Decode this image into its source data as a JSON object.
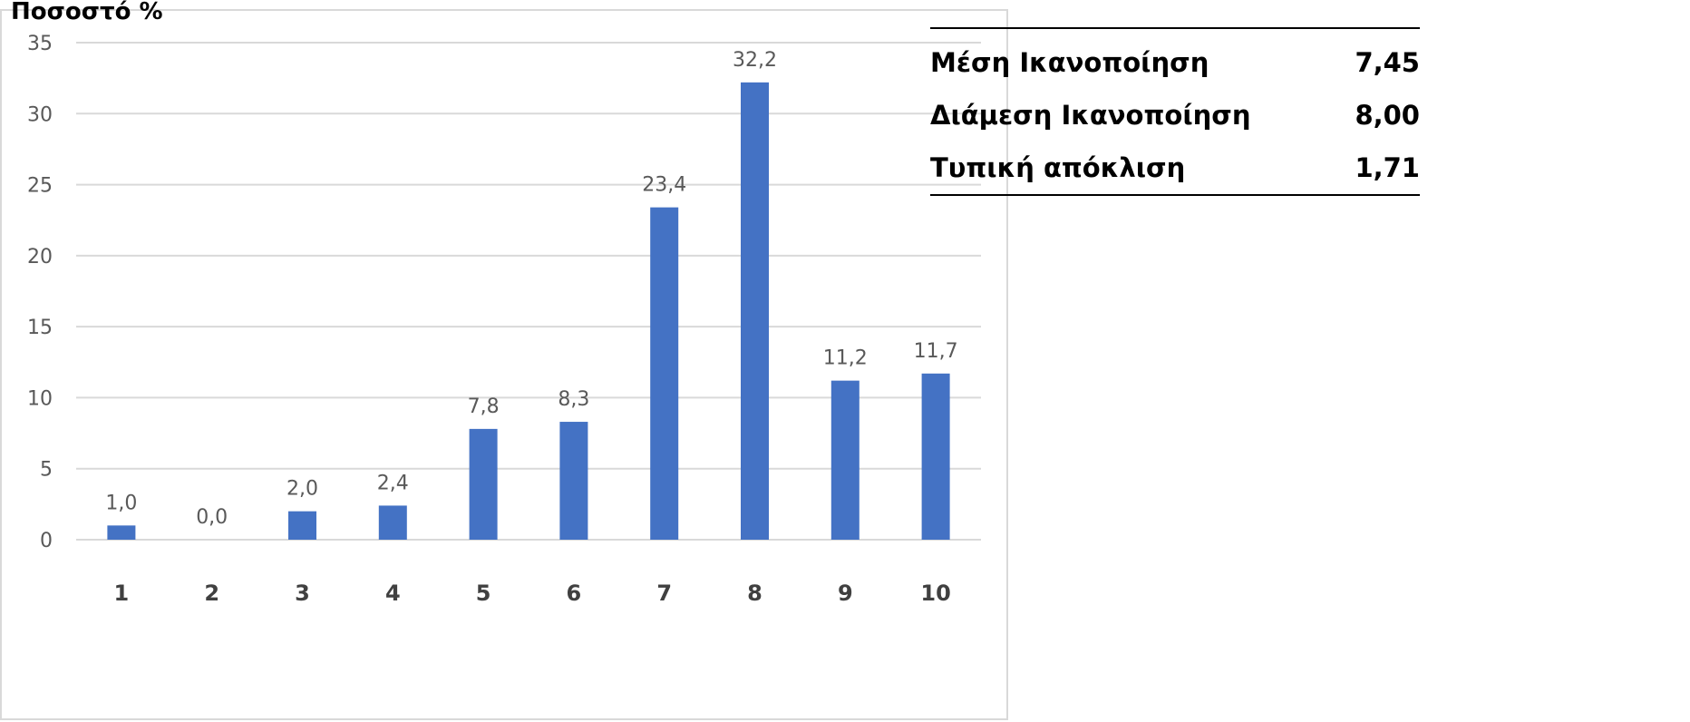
{
  "chart_data": {
    "type": "bar",
    "ylabel": "Ποσοστό %",
    "xlabel": "",
    "categories": [
      "1",
      "2",
      "3",
      "4",
      "5",
      "6",
      "7",
      "8",
      "9",
      "10"
    ],
    "values": [
      1.0,
      0.0,
      2.0,
      2.4,
      7.8,
      8.3,
      23.4,
      32.2,
      11.2,
      11.7
    ],
    "data_labels": [
      "1,0",
      "0,0",
      "2,0",
      "2,4",
      "7,8",
      "8,3",
      "23,4",
      "32,2",
      "11,2",
      "11,7"
    ],
    "ylim": [
      0,
      35
    ],
    "yticks": [
      "0",
      "5",
      "10",
      "15",
      "20",
      "25",
      "30",
      "35"
    ],
    "grid": true,
    "bar_color": "#4472c4"
  },
  "stats": [
    {
      "label": "Μέση Ικανοποίηση",
      "value": "7,45"
    },
    {
      "label": "Διάμεση Ικανοποίηση",
      "value": "8,00"
    },
    {
      "label": "Τυπική απόκλιση",
      "value": "1,71"
    }
  ]
}
